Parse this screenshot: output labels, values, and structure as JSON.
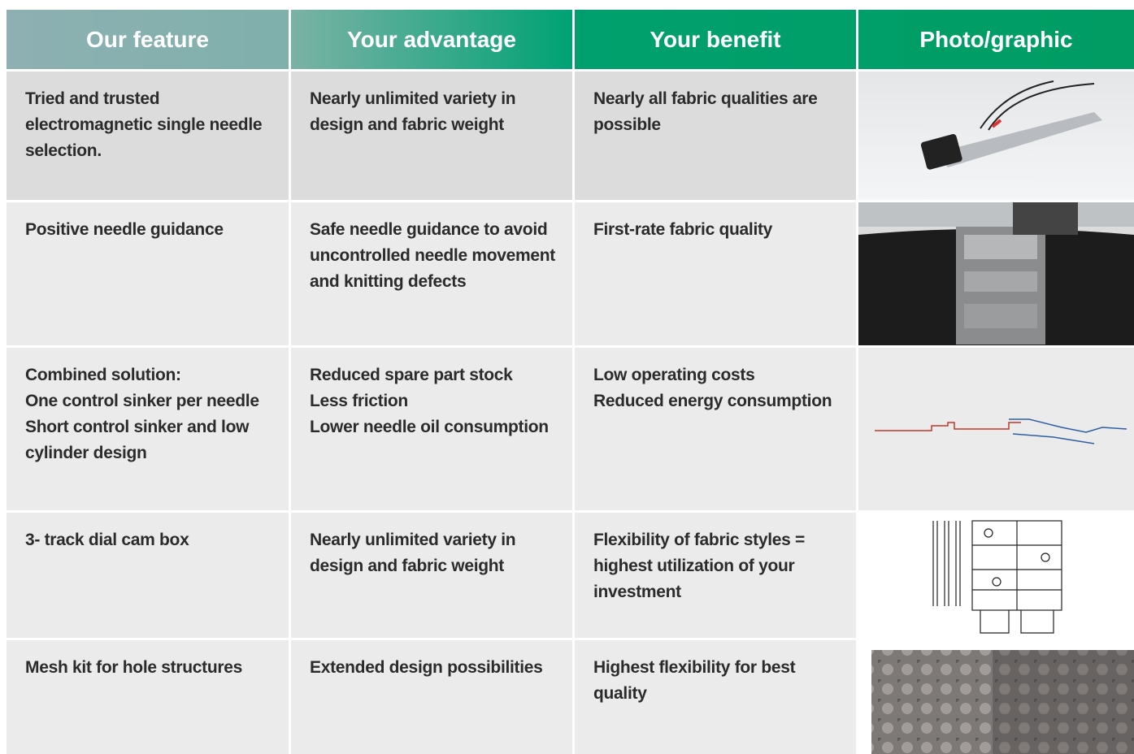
{
  "table": {
    "header": [
      "Our feature",
      "Your advantage",
      "Your benefit",
      "Photo/graphic"
    ],
    "rows": [
      [
        [
          "Tried and trusted electromagnetic single needle selection."
        ],
        [
          "Nearly unlimited variety in design and fabric weight"
        ],
        [
          "Nearly all fabric qualities are possible"
        ]
      ],
      [
        [
          "Positive needle guidance"
        ],
        [
          "Safe needle guidance to avoid uncontrolled needle movement and knitting defects"
        ],
        [
          "First-rate fabric quality"
        ]
      ],
      [
        [
          "Combined solution:",
          "One control sinker per needle",
          "Short control sinker and low cylinder design"
        ],
        [
          "Reduced spare part stock",
          "Less friction",
          "Lower needle oil consumption"
        ],
        [
          "Low operating costs",
          "Reduced energy consumption"
        ]
      ],
      [
        [
          "3- track dial cam box"
        ],
        [
          "Nearly unlimited variety in design and fabric weight"
        ],
        [
          "Flexibility of fabric styles = highest utilization of your investment"
        ]
      ],
      [
        [
          "Mesh kit for hole structures"
        ],
        [
          "Extended design possibilities"
        ],
        [
          "Highest flexibility for best quality"
        ]
      ]
    ]
  }
}
